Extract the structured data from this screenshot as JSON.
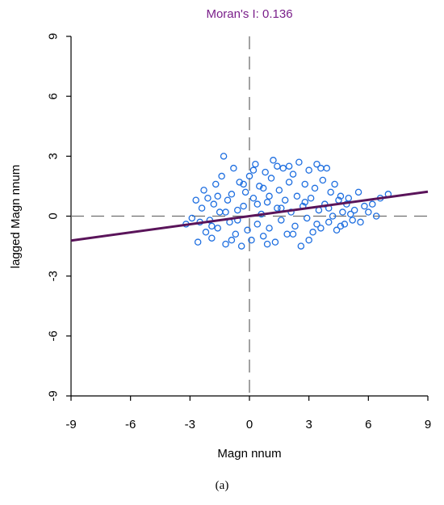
{
  "chart_data": {
    "type": "scatter",
    "title": "Moran's I: 0.136",
    "xlabel": "Magn nnum",
    "ylabel": "lagged Magn nnum",
    "xlim": [
      -9,
      9
    ],
    "ylim": [
      -9,
      9
    ],
    "xticks": [
      -9,
      -6,
      -3,
      0,
      3,
      6,
      9
    ],
    "yticks": [
      -9,
      -6,
      -3,
      0,
      3,
      6,
      9
    ],
    "reference_lines": {
      "x": 0,
      "y": 0,
      "style": "dashed"
    },
    "regression_line": {
      "slope": 0.136,
      "intercept": 0
    },
    "series": [
      {
        "points": [
          [
            -3.2,
            -0.4
          ],
          [
            -2.9,
            -0.1
          ],
          [
            -2.6,
            -1.3
          ],
          [
            -2.5,
            -0.3
          ],
          [
            -2.4,
            0.4
          ],
          [
            -2.3,
            1.3
          ],
          [
            -2.2,
            -0.8
          ],
          [
            -2.1,
            0.9
          ],
          [
            -2.0,
            -0.2
          ],
          [
            -1.9,
            -1.1
          ],
          [
            -1.8,
            0.6
          ],
          [
            -1.7,
            1.6
          ],
          [
            -1.6,
            -0.6
          ],
          [
            -1.5,
            0.2
          ],
          [
            -1.4,
            2.0
          ],
          [
            -1.3,
            3.0
          ],
          [
            -1.2,
            -1.4
          ],
          [
            -1.1,
            0.8
          ],
          [
            -1.0,
            -0.3
          ],
          [
            -0.9,
            1.1
          ],
          [
            -0.8,
            2.4
          ],
          [
            -0.7,
            -0.9
          ],
          [
            -0.6,
            0.3
          ],
          [
            -0.5,
            1.7
          ],
          [
            -0.4,
            -1.5
          ],
          [
            -0.3,
            0.5
          ],
          [
            -0.2,
            1.2
          ],
          [
            -0.1,
            -0.7
          ],
          [
            0.0,
            2.0
          ],
          [
            0.1,
            -1.2
          ],
          [
            0.2,
            0.9
          ],
          [
            0.3,
            2.6
          ],
          [
            0.4,
            -0.4
          ],
          [
            0.5,
            1.5
          ],
          [
            0.6,
            0.1
          ],
          [
            0.7,
            -1.0
          ],
          [
            0.8,
            2.2
          ],
          [
            0.9,
            0.7
          ],
          [
            1.0,
            -0.6
          ],
          [
            1.1,
            1.9
          ],
          [
            1.2,
            2.8
          ],
          [
            1.3,
            -1.3
          ],
          [
            1.4,
            0.4
          ],
          [
            1.5,
            1.3
          ],
          [
            1.6,
            -0.2
          ],
          [
            1.7,
            2.4
          ],
          [
            1.8,
            0.8
          ],
          [
            1.9,
            -0.9
          ],
          [
            2.0,
            1.7
          ],
          [
            2.1,
            0.2
          ],
          [
            2.2,
            2.1
          ],
          [
            2.3,
            -0.5
          ],
          [
            2.4,
            1.0
          ],
          [
            2.5,
            2.7
          ],
          [
            2.6,
            -1.5
          ],
          [
            2.7,
            0.5
          ],
          [
            2.8,
            1.6
          ],
          [
            2.9,
            -0.1
          ],
          [
            3.0,
            2.3
          ],
          [
            3.1,
            0.9
          ],
          [
            3.2,
            -0.8
          ],
          [
            3.3,
            1.4
          ],
          [
            3.4,
            2.6
          ],
          [
            3.5,
            0.3
          ],
          [
            3.6,
            -0.6
          ],
          [
            3.7,
            1.8
          ],
          [
            3.8,
            0.6
          ],
          [
            3.9,
            2.4
          ],
          [
            4.0,
            -0.3
          ],
          [
            4.1,
            1.2
          ],
          [
            4.2,
            0.0
          ],
          [
            4.3,
            1.6
          ],
          [
            4.4,
            -0.7
          ],
          [
            4.5,
            0.8
          ],
          [
            4.6,
            1.0
          ],
          [
            4.7,
            0.2
          ],
          [
            4.8,
            -0.4
          ],
          [
            4.9,
            0.6
          ],
          [
            5.0,
            0.9
          ],
          [
            5.2,
            -0.2
          ],
          [
            5.3,
            0.3
          ],
          [
            5.5,
            1.2
          ],
          [
            5.6,
            -0.3
          ],
          [
            5.8,
            0.5
          ],
          [
            6.0,
            0.2
          ],
          [
            6.2,
            0.6
          ],
          [
            6.4,
            0.0
          ],
          [
            6.6,
            0.9
          ],
          [
            7.0,
            1.1
          ],
          [
            -2.7,
            0.8
          ],
          [
            -1.9,
            -0.5
          ],
          [
            -1.2,
            0.2
          ],
          [
            -0.6,
            -0.2
          ],
          [
            0.4,
            0.6
          ],
          [
            1.0,
            1.0
          ],
          [
            1.6,
            0.4
          ],
          [
            2.2,
            -0.9
          ],
          [
            2.8,
            0.7
          ],
          [
            3.4,
            -0.4
          ],
          [
            4.0,
            0.4
          ],
          [
            4.6,
            -0.5
          ],
          [
            5.1,
            0.1
          ],
          [
            0.9,
            -1.4
          ],
          [
            -0.9,
            -1.2
          ],
          [
            0.2,
            2.3
          ],
          [
            1.4,
            2.5
          ],
          [
            2.0,
            2.5
          ],
          [
            3.6,
            2.4
          ],
          [
            -1.6,
            1.0
          ],
          [
            -0.3,
            1.6
          ],
          [
            0.7,
            1.4
          ],
          [
            3.0,
            -1.2
          ]
        ]
      }
    ],
    "colors": {
      "points": "#1f6fe0",
      "regression": "#5a145a",
      "title": "#7a1f8a",
      "reference": "#707070"
    }
  },
  "caption": "(a)"
}
